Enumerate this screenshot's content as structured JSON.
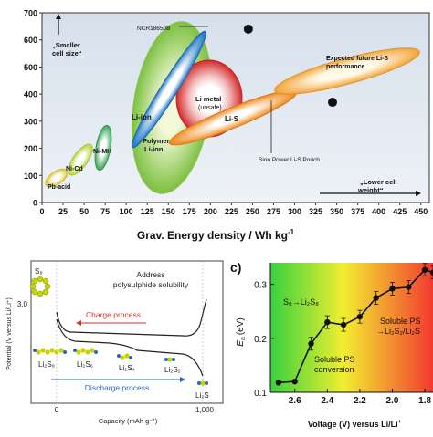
{
  "ragone": {
    "xlabel": "Grav. Energy density / Wh kg",
    "xlabel_sup": "-1",
    "annot_small": "„Smaller cell size“",
    "annot_small_l1": "„Smaller",
    "annot_small_l2": "cell size“",
    "annot_lower_l1": "„Lower cell",
    "annot_lower_l2": "weight“",
    "tech_labels": {
      "pb": "Pb-acid",
      "nicd": "Ni-Cd",
      "nimh": "Ni-MH",
      "liion": "Li-ion",
      "polymer_l1": "Polymer",
      "polymer_l2": "Li-ion",
      "limetal_l1": "Li metal",
      "limetal_l2": "(unsafe)",
      "lis": "Li-S",
      "future_l1": "Expected future Li-S",
      "future_l2": "performance",
      "ncr": "NCR18650B",
      "sion": "Sion Power Li-S Pouch"
    },
    "colors": {
      "pb": "#d9c63a",
      "nicd": "#b8d23a",
      "nimh": "#3aa455",
      "liion": "#1f77c4",
      "limetal": "#d42a2a",
      "lis": "#f08a1c",
      "polymer": "#6cb83c",
      "future": "#f2a53c"
    }
  },
  "battery": {
    "title_l1": "Address",
    "title_l2": "polysulphide solubility",
    "charge": "Charge process",
    "discharge": "Discharge process",
    "ylabel": "Potential (V versus Li/Li⁺)",
    "xlabel": "Capacity (mAh g⁻¹)",
    "ytick": "3.0",
    "xtick0": "0",
    "xtick1": "1,000",
    "s8": "S₈",
    "species": [
      "Li₂S₈",
      "Li₂S₆",
      "Li₂S₄",
      "Li₂S₂",
      "Li₂S"
    ]
  },
  "barrier": {
    "panel_label": "c)",
    "ylabel": "E",
    "ylabel_sub": "a",
    "ylabel_unit": "(eV)",
    "xlabel": "Voltage (V) versus Li/Li",
    "xlabel_sup": "+",
    "annot1": "S₈→Li₂S₈",
    "annot2_l1": "Soluble PS",
    "annot2_l2": "conversion",
    "annot3_l1": "Soluble PS",
    "annot3_l2": "→Li₂S₂/Li₂S"
  },
  "chart_data": [
    {
      "type": "scatter",
      "xlabel": "Grav. Energy density / Wh kg-1",
      "ylabel": "",
      "xlim": [
        0,
        460
      ],
      "ylim": [
        0,
        700
      ],
      "xticks": [
        0,
        25,
        50,
        75,
        100,
        125,
        150,
        175,
        200,
        225,
        250,
        275,
        300,
        325,
        350,
        375,
        400,
        425,
        450
      ],
      "yticks": [
        0,
        100,
        200,
        300,
        400,
        500,
        600,
        700
      ],
      "series": [
        {
          "name": "NCR18650B",
          "x": [
            245
          ],
          "y": [
            640
          ]
        },
        {
          "name": "Sion Power Li-S Pouch",
          "x": [
            345
          ],
          "y": [
            370
          ]
        }
      ]
    },
    {
      "type": "line",
      "xlabel": "Voltage (V) versus Li/Li+",
      "ylabel": "Ea (eV)",
      "xlim": [
        2.75,
        1.75
      ],
      "ylim": [
        0.1,
        0.34
      ],
      "xticks": [
        2.6,
        2.4,
        2.2,
        2.0,
        1.8
      ],
      "yticks": [
        0.1,
        0.2,
        0.3
      ],
      "x": [
        2.7,
        2.6,
        2.5,
        2.4,
        2.3,
        2.2,
        2.1,
        2.0,
        1.9,
        1.8,
        1.75
      ],
      "y": [
        0.118,
        0.12,
        0.19,
        0.23,
        0.225,
        0.24,
        0.275,
        0.292,
        0.295,
        0.327,
        0.322
      ]
    }
  ]
}
